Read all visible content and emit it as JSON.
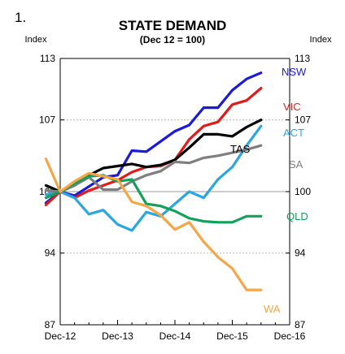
{
  "panel_number": "1.",
  "chart_data": {
    "type": "line",
    "title": "STATE DEMAND",
    "subtitle": "(Dec 12 = 100)",
    "ylabel_left": "Index",
    "ylabel_right": "Index",
    "ylim": [
      87,
      113
    ],
    "yticks": [
      87,
      94,
      100,
      107,
      113
    ],
    "xlim": [
      "Dec-12",
      "Dec-16"
    ],
    "xticks": [
      "Dec-12",
      "Dec-13",
      "Dec-14",
      "Dec-15",
      "Dec-16"
    ],
    "gridlines": "dotted horizontal at 94, 107; solid at 100",
    "legend": "inline labels at line ends",
    "x": [
      "Sep-12",
      "Dec-12",
      "Mar-13",
      "Jun-13",
      "Sep-13",
      "Dec-13",
      "Mar-14",
      "Jun-14",
      "Sep-14",
      "Dec-14",
      "Mar-15",
      "Jun-15",
      "Sep-15",
      "Dec-15",
      "Mar-16",
      "Jun-16"
    ],
    "series": [
      {
        "name": "NSW",
        "color": "#1a1adb",
        "label_color": "#1a1adb",
        "values": [
          98.9,
          100.0,
          99.6,
          100.5,
          101.4,
          101.6,
          104.0,
          103.9,
          104.9,
          105.9,
          106.5,
          108.2,
          108.2,
          109.9,
          111.0,
          111.6
        ]
      },
      {
        "name": "VIC",
        "color": "#e01b1b",
        "label_color": "#e01b1b",
        "values": [
          98.7,
          100.0,
          99.4,
          100.1,
          100.6,
          101.1,
          101.9,
          102.4,
          102.5,
          103.1,
          105.1,
          106.4,
          106.8,
          108.5,
          108.9,
          110.1
        ]
      },
      {
        "name": "ACT",
        "color": "#2aa6e0",
        "label_color": "#2aa6e0",
        "values": [
          99.7,
          100.0,
          99.4,
          97.8,
          98.2,
          96.8,
          96.2,
          98.0,
          97.6,
          98.8,
          100.0,
          99.4,
          101.2,
          102.4,
          104.5,
          106.4
        ]
      },
      {
        "name": "TAS",
        "color": "#000000",
        "label_color": "#000000",
        "values": [
          100.6,
          100.0,
          100.6,
          101.6,
          102.3,
          102.5,
          102.7,
          102.4,
          102.6,
          103.1,
          104.3,
          105.6,
          105.6,
          105.4,
          106.3,
          107.0
        ]
      },
      {
        "name": "SA",
        "color": "#7f7f7f",
        "label_color": "#7f7f7f",
        "values": [
          100.1,
          100.0,
          100.6,
          101.4,
          100.2,
          100.2,
          101.0,
          101.6,
          102.0,
          102.9,
          102.8,
          103.3,
          103.5,
          103.8,
          104.1,
          104.5
        ]
      },
      {
        "name": "QLD",
        "color": "#12a05a",
        "label_color": "#12a05a",
        "values": [
          99.4,
          100.0,
          100.8,
          101.5,
          101.6,
          101.0,
          101.2,
          98.8,
          98.6,
          98.1,
          97.4,
          97.1,
          97.0,
          97.0,
          97.6,
          97.6
        ]
      },
      {
        "name": "WA",
        "color": "#f5a646",
        "label_color": "#f5a646",
        "values": [
          103.2,
          100.0,
          101.0,
          101.8,
          101.5,
          101.2,
          99.0,
          98.6,
          97.7,
          96.3,
          97.0,
          95.1,
          93.6,
          92.5,
          90.4,
          90.4
        ]
      }
    ]
  }
}
